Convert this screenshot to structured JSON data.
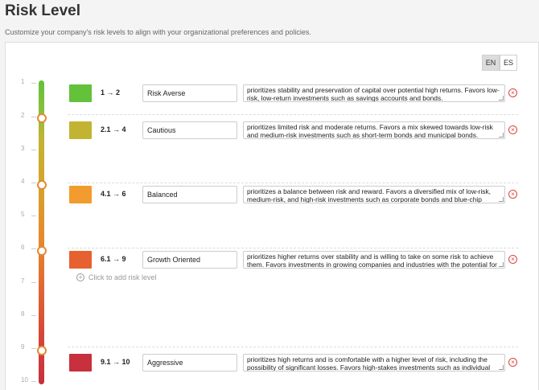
{
  "header": {
    "title": "Risk Level",
    "subtitle": "Customize your company's risk levels to align with your organizational preferences and policies."
  },
  "languages": [
    "EN",
    "ES"
  ],
  "selected_language": "EN",
  "scale_labels": [
    "1",
    "2",
    "3",
    "4",
    "5",
    "6",
    "7",
    "8",
    "9",
    "10"
  ],
  "risk_levels": [
    {
      "color": "#63c13a",
      "range": "1 → 2",
      "name": "Risk Averse",
      "description": "prioritizes stability and preservation of capital over potential high returns. Favors low-risk, low-return investments such as savings accounts and bonds."
    },
    {
      "color": "#c2b432",
      "range": "2.1 → 4",
      "name": "Cautious",
      "description": "prioritizes limited risk and moderate returns. Favors a mix skewed towards low-risk and medium-risk investments such as short-term bonds and municipal bonds."
    },
    {
      "color": "#f29b2e",
      "range": "4.1 → 6",
      "name": "Balanced",
      "description": "prioritizes a balance between risk and reward. Favors a diversified mix of low-risk, medium-risk, and high-risk investments such as corporate bonds and blue-chip"
    },
    {
      "color": "#e6612f",
      "range": "6.1 → 9",
      "name": "Growth Oriented",
      "description": "prioritizes higher returns over stability and is willing to take on some risk to achieve them. Favors investments in growing companies and industries with the potential for"
    },
    {
      "color": "#c7303c",
      "range": "9.1 → 10",
      "name": "Aggressive",
      "description": "prioritizes high returns and is comfortable with a higher level of risk, including the possibility of significant losses. Favors high-stakes investments such as individual"
    }
  ],
  "slider_handle_values": [
    2,
    4,
    6,
    9
  ],
  "add_label": "Click to add risk level"
}
